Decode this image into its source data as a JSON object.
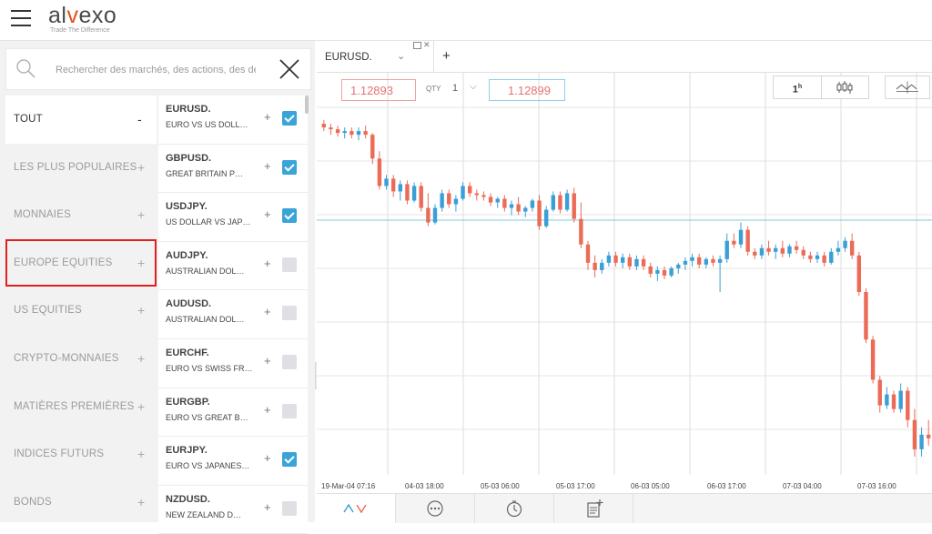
{
  "app": {
    "brand": "alvexo",
    "tagline": "Trade The Difference"
  },
  "search": {
    "placeholder": "Rechercher des marchés, des actions, des devi"
  },
  "categories": [
    {
      "label": "TOUT",
      "action": "-",
      "state": "active"
    },
    {
      "label": "LES PLUS POPULAIRES",
      "action": "+"
    },
    {
      "label": "MONNAIES",
      "action": "+"
    },
    {
      "label": "EUROPE EQUITIES",
      "action": "+",
      "state": "highlighted"
    },
    {
      "label": "US EQUITIES",
      "action": "+"
    },
    {
      "label": "CRYPTO-MONNAIES",
      "action": "+"
    },
    {
      "label": "MATIÈRES PREMIÈRES",
      "action": "+"
    },
    {
      "label": "INDICES FUTURS",
      "action": "+"
    },
    {
      "label": "BONDS",
      "action": "+"
    }
  ],
  "instruments": [
    {
      "symbol": "EURUSD.",
      "desc": "EURO VS US DOLL…",
      "checked": true
    },
    {
      "symbol": "GBPUSD.",
      "desc": "GREAT BRITAIN P…",
      "checked": true
    },
    {
      "symbol": "USDJPY.",
      "desc": "US DOLLAR VS JAP…",
      "checked": true
    },
    {
      "symbol": "AUDJPY.",
      "desc": "AUSTRALIAN DOL…",
      "checked": false
    },
    {
      "symbol": "AUDUSD.",
      "desc": "AUSTRALIAN DOL…",
      "checked": false
    },
    {
      "symbol": "EURCHF.",
      "desc": "EURO VS SWISS FR…",
      "checked": false
    },
    {
      "symbol": "EURGBP.",
      "desc": "EURO VS GREAT B…",
      "checked": false
    },
    {
      "symbol": "EURJPY.",
      "desc": "EURO VS JAPANES…",
      "checked": true
    },
    {
      "symbol": "NZDUSD.",
      "desc": "NEW ZEALAND D…",
      "checked": false
    }
  ],
  "instrument_plus": "+",
  "tab": {
    "label": "EURUSD.",
    "chevron": "⌄",
    "close": "✕",
    "new_tab": "+"
  },
  "trade": {
    "sell_price": "1.12893",
    "qty_label": "QTY",
    "qty_value": "1",
    "buy_price": "1.12899"
  },
  "timeframe": {
    "value": "1",
    "unit": "h"
  },
  "time_labels": [
    "19-Mar-04 07:16",
    "04-03 18:00",
    "05-03 06:00",
    "05-03 17:00",
    "06-03 05:00",
    "06-03 17:00",
    "07-03 04:00",
    "07-03 16:00"
  ],
  "colors": {
    "up": "#3a9fd6",
    "down": "#ec6b57",
    "price_line": "#7cc8dc",
    "highlight": "#e02020"
  },
  "chart_data": {
    "type": "candlestick",
    "series": [
      {
        "name": "EURUSD.",
        "candles": [
          [
            1.1342,
            1.1344,
            1.1338,
            1.134
          ],
          [
            1.134,
            1.1342,
            1.1336,
            1.1339
          ],
          [
            1.1339,
            1.1341,
            1.1335,
            1.1337
          ],
          [
            1.1337,
            1.134,
            1.1334,
            1.1338
          ],
          [
            1.1338,
            1.134,
            1.1334,
            1.1336
          ],
          [
            1.1336,
            1.134,
            1.1333,
            1.1338
          ],
          [
            1.1338,
            1.1341,
            1.1334,
            1.1336
          ],
          [
            1.1336,
            1.1337,
            1.132,
            1.1323
          ],
          [
            1.1323,
            1.1327,
            1.1306,
            1.1308
          ],
          [
            1.1308,
            1.1314,
            1.1306,
            1.1312
          ],
          [
            1.1312,
            1.1314,
            1.1302,
            1.1305
          ],
          [
            1.1305,
            1.1311,
            1.13,
            1.1309
          ],
          [
            1.1309,
            1.1311,
            1.1298,
            1.13
          ],
          [
            1.13,
            1.131,
            1.1299,
            1.1308
          ],
          [
            1.1308,
            1.131,
            1.1294,
            1.1296
          ],
          [
            1.1296,
            1.1304,
            1.1286,
            1.1288
          ],
          [
            1.1288,
            1.1298,
            1.1287,
            1.1296
          ],
          [
            1.1296,
            1.1306,
            1.1294,
            1.1304
          ],
          [
            1.1304,
            1.1306,
            1.1296,
            1.1298
          ],
          [
            1.1298,
            1.1303,
            1.1294,
            1.1301
          ],
          [
            1.1301,
            1.131,
            1.13,
            1.1308
          ],
          [
            1.1308,
            1.131,
            1.1302,
            1.1304
          ],
          [
            1.1304,
            1.1306,
            1.13,
            1.1303
          ],
          [
            1.1303,
            1.1305,
            1.13,
            1.1302
          ],
          [
            1.1302,
            1.1304,
            1.1297,
            1.1299
          ],
          [
            1.1299,
            1.1302,
            1.1296,
            1.1301
          ],
          [
            1.1301,
            1.1303,
            1.1294,
            1.1296
          ],
          [
            1.1296,
            1.13,
            1.1292,
            1.1298
          ],
          [
            1.1298,
            1.1302,
            1.1292,
            1.1294
          ],
          [
            1.1294,
            1.1297,
            1.1291,
            1.1296
          ],
          [
            1.1296,
            1.1301,
            1.1294,
            1.13
          ],
          [
            1.13,
            1.1303,
            1.1284,
            1.1286
          ],
          [
            1.1286,
            1.1297,
            1.1285,
            1.1295
          ],
          [
            1.1295,
            1.1305,
            1.1294,
            1.1303
          ],
          [
            1.1303,
            1.1305,
            1.1293,
            1.1295
          ],
          [
            1.1295,
            1.1306,
            1.1294,
            1.1304
          ],
          [
            1.1304,
            1.1307,
            1.1288,
            1.129
          ],
          [
            1.129,
            1.1299,
            1.1274,
            1.1276
          ],
          [
            1.1276,
            1.1278,
            1.1262,
            1.1266
          ],
          [
            1.1266,
            1.127,
            1.1258,
            1.1262
          ],
          [
            1.1262,
            1.1268,
            1.126,
            1.1266
          ],
          [
            1.1266,
            1.1272,
            1.1264,
            1.127
          ],
          [
            1.127,
            1.1272,
            1.1264,
            1.1266
          ],
          [
            1.1266,
            1.1271,
            1.1263,
            1.1269
          ],
          [
            1.1269,
            1.1271,
            1.1262,
            1.1264
          ],
          [
            1.1264,
            1.127,
            1.1262,
            1.1268
          ],
          [
            1.1268,
            1.127,
            1.1262,
            1.1264
          ],
          [
            1.1264,
            1.1266,
            1.1258,
            1.126
          ],
          [
            1.126,
            1.1264,
            1.1256,
            1.1262
          ],
          [
            1.1262,
            1.1264,
            1.1257,
            1.1259
          ],
          [
            1.1259,
            1.1264,
            1.1258,
            1.1263
          ],
          [
            1.1263,
            1.1266,
            1.126,
            1.1265
          ],
          [
            1.1265,
            1.1269,
            1.1262,
            1.1267
          ],
          [
            1.1267,
            1.1271,
            1.1264,
            1.1269
          ],
          [
            1.1269,
            1.1271,
            1.1263,
            1.1265
          ],
          [
            1.1265,
            1.1269,
            1.1263,
            1.1268
          ],
          [
            1.1268,
            1.127,
            1.1264,
            1.1266
          ],
          [
            1.1266,
            1.127,
            1.125,
            1.1268
          ],
          [
            1.1268,
            1.1282,
            1.1266,
            1.1278
          ],
          [
            1.1278,
            1.1282,
            1.1274,
            1.1276
          ],
          [
            1.1276,
            1.1288,
            1.1274,
            1.1284
          ],
          [
            1.1284,
            1.1286,
            1.127,
            1.1272
          ],
          [
            1.1272,
            1.1274,
            1.1268,
            1.127
          ],
          [
            1.127,
            1.1276,
            1.1268,
            1.1274
          ],
          [
            1.1274,
            1.1278,
            1.127,
            1.1272
          ],
          [
            1.1272,
            1.1276,
            1.1268,
            1.1274
          ],
          [
            1.1274,
            1.1278,
            1.1269,
            1.1271
          ],
          [
            1.1271,
            1.1276,
            1.1269,
            1.1275
          ],
          [
            1.1275,
            1.1278,
            1.1271,
            1.1273
          ],
          [
            1.1273,
            1.1275,
            1.1268,
            1.127
          ],
          [
            1.127,
            1.1272,
            1.1266,
            1.1268
          ],
          [
            1.1268,
            1.1272,
            1.1266,
            1.127
          ],
          [
            1.127,
            1.1272,
            1.1264,
            1.1266
          ],
          [
            1.1266,
            1.1274,
            1.1265,
            1.1272
          ],
          [
            1.1272,
            1.1278,
            1.127,
            1.1274
          ],
          [
            1.1274,
            1.128,
            1.1272,
            1.1278
          ],
          [
            1.1278,
            1.1282,
            1.1268,
            1.127
          ],
          [
            1.127,
            1.1272,
            1.1248,
            1.125
          ],
          [
            1.125,
            1.1252,
            1.1222,
            1.1224
          ],
          [
            1.1224,
            1.1226,
            1.12,
            1.1202
          ],
          [
            1.1202,
            1.1204,
            1.1184,
            1.1188
          ],
          [
            1.1188,
            1.1198,
            1.1186,
            1.1194
          ],
          [
            1.1194,
            1.1196,
            1.1184,
            1.1186
          ],
          [
            1.1186,
            1.12,
            1.1184,
            1.1196
          ],
          [
            1.1196,
            1.1198,
            1.1176,
            1.118
          ],
          [
            1.118,
            1.1186,
            1.116,
            1.1164
          ],
          [
            1.1164,
            1.1176,
            1.116,
            1.1172
          ],
          [
            1.1172,
            1.118,
            1.1166,
            1.117
          ]
        ]
      }
    ],
    "current_price": 1.12893,
    "x_labels": [
      "19-Mar-04 07:16",
      "04-03 18:00",
      "05-03 06:00",
      "05-03 17:00",
      "06-03 05:00",
      "06-03 17:00",
      "07-03 04:00",
      "07-03 16:00"
    ]
  }
}
